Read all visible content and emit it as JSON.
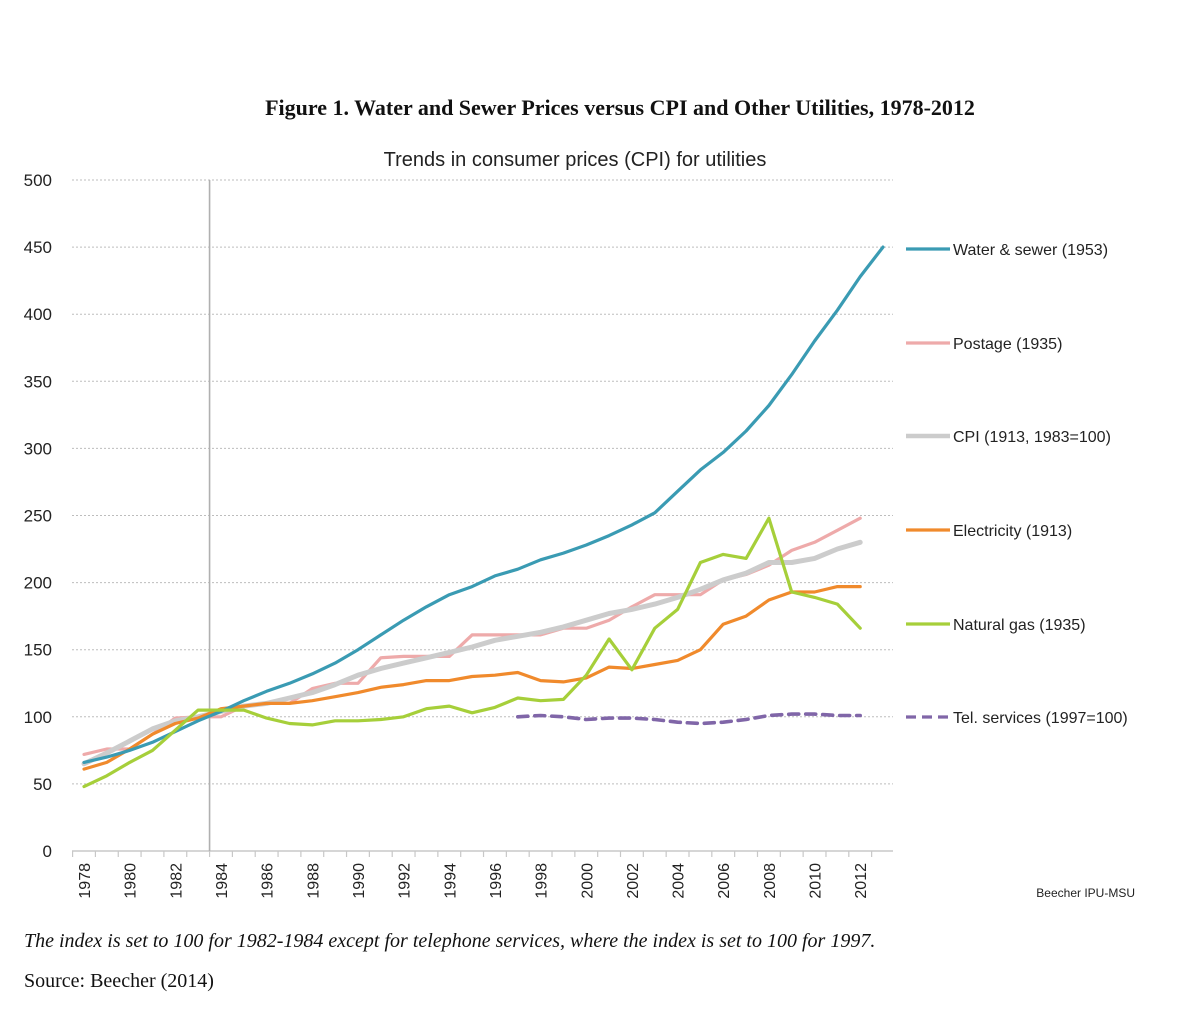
{
  "figure": {
    "title": "Figure 1.  Water and Sewer Prices versus CPI and Other Utilities, 1978-2012",
    "footnote": "The index is set to 100 for 1982-1984 except for telephone services, where the index is set to 100 for 1997.",
    "source": "Source: Beecher (2014)",
    "credit": "Beecher IPU-MSU"
  },
  "chart_data": {
    "type": "line",
    "title": "Trends in consumer prices (CPI) for utilities",
    "xlabel": "",
    "ylabel": "",
    "ylim": [
      0,
      500
    ],
    "yticks": [
      0,
      50,
      100,
      150,
      200,
      250,
      300,
      350,
      400,
      450,
      500
    ],
    "xlim": [
      1978,
      2013
    ],
    "xtick_labels": [
      "1978",
      "1980",
      "1982",
      "1984",
      "1986",
      "1988",
      "1990",
      "1992",
      "1994",
      "1996",
      "1998",
      "2000",
      "2002",
      "2004",
      "2006",
      "2008",
      "2010",
      "2012"
    ],
    "reference_line_x": 1983.5,
    "grid": "horizontal dotted",
    "legend_position": "right",
    "series": [
      {
        "name": "Water & sewer (1953)",
        "color": "#3a9bb3",
        "dashed": false,
        "x": [
          1978,
          1979,
          1980,
          1981,
          1982,
          1983,
          1984,
          1985,
          1986,
          1987,
          1988,
          1989,
          1990,
          1991,
          1992,
          1993,
          1994,
          1995,
          1996,
          1997,
          1998,
          1999,
          2000,
          2001,
          2002,
          2003,
          2004,
          2005,
          2006,
          2007,
          2008,
          2009,
          2010,
          2011,
          2012,
          2013
        ],
        "values": [
          66,
          70,
          75,
          81,
          89,
          97,
          104,
          112,
          119,
          125,
          132,
          140,
          150,
          161,
          172,
          182,
          191,
          197,
          205,
          210,
          217,
          222,
          228,
          235,
          243,
          252,
          268,
          284,
          297,
          313,
          332,
          355,
          380,
          403,
          428,
          450
        ]
      },
      {
        "name": "Postage (1935)",
        "color": "#eeaaaa",
        "dashed": false,
        "x": [
          1978,
          1979,
          1980,
          1981,
          1982,
          1983,
          1984,
          1985,
          1986,
          1987,
          1988,
          1989,
          1990,
          1991,
          1992,
          1993,
          1994,
          1995,
          1996,
          1997,
          1998,
          1999,
          2000,
          2001,
          2002,
          2003,
          2004,
          2005,
          2006,
          2007,
          2008,
          2009,
          2010,
          2011,
          2012
        ],
        "values": [
          72,
          76,
          76,
          87,
          99,
          100,
          100,
          108,
          110,
          110,
          121,
          125,
          125,
          144,
          145,
          145,
          145,
          161,
          161,
          161,
          161,
          166,
          166,
          172,
          182,
          191,
          191,
          191,
          202,
          206,
          213,
          224,
          230,
          239,
          248
        ]
      },
      {
        "name": "CPI (1913, 1983=100)",
        "color": "#cccccc",
        "dashed": false,
        "x": [
          1978,
          1979,
          1980,
          1981,
          1982,
          1983,
          1984,
          1985,
          1986,
          1987,
          1988,
          1989,
          1990,
          1991,
          1992,
          1993,
          1994,
          1995,
          1996,
          1997,
          1998,
          1999,
          2000,
          2001,
          2002,
          2003,
          2004,
          2005,
          2006,
          2007,
          2008,
          2009,
          2010,
          2011,
          2012
        ],
        "values": [
          65,
          73,
          82,
          91,
          97,
          100,
          104,
          108,
          110,
          114,
          118,
          124,
          131,
          136,
          140,
          144,
          148,
          152,
          157,
          160,
          163,
          167,
          172,
          177,
          180,
          184,
          189,
          195,
          202,
          207,
          215,
          215,
          218,
          225,
          230
        ]
      },
      {
        "name": "Electricity (1913)",
        "color": "#f08a2c",
        "dashed": false,
        "x": [
          1978,
          1979,
          1980,
          1981,
          1982,
          1983,
          1984,
          1985,
          1986,
          1987,
          1988,
          1989,
          1990,
          1991,
          1992,
          1993,
          1994,
          1995,
          1996,
          1997,
          1998,
          1999,
          2000,
          2001,
          2002,
          2003,
          2004,
          2005,
          2006,
          2007,
          2008,
          2009,
          2010,
          2011,
          2012
        ],
        "values": [
          61,
          66,
          76,
          87,
          95,
          99,
          106,
          108,
          110,
          110,
          112,
          115,
          118,
          122,
          124,
          127,
          127,
          130,
          131,
          133,
          127,
          126,
          129,
          137,
          136,
          139,
          142,
          150,
          169,
          175,
          187,
          193,
          193,
          197,
          197
        ]
      },
      {
        "name": "Natural gas (1935)",
        "color": "#a6cf3a",
        "dashed": false,
        "x": [
          1978,
          1979,
          1980,
          1981,
          1982,
          1983,
          1984,
          1985,
          1986,
          1987,
          1988,
          1989,
          1990,
          1991,
          1992,
          1993,
          1994,
          1995,
          1996,
          1997,
          1998,
          1999,
          2000,
          2001,
          2002,
          2003,
          2004,
          2005,
          2006,
          2007,
          2008,
          2009,
          2010,
          2011,
          2012
        ],
        "values": [
          48,
          56,
          66,
          75,
          90,
          105,
          105,
          105,
          99,
          95,
          94,
          97,
          97,
          98,
          100,
          106,
          108,
          103,
          107,
          114,
          112,
          113,
          131,
          158,
          135,
          166,
          180,
          215,
          221,
          218,
          248,
          193,
          189,
          184,
          166
        ]
      },
      {
        "name": "Tel. services (1997=100)",
        "color": "#8066a8",
        "dashed": true,
        "x": [
          1997,
          1998,
          1999,
          2000,
          2001,
          2002,
          2003,
          2004,
          2005,
          2006,
          2007,
          2008,
          2009,
          2010,
          2011,
          2012
        ],
        "values": [
          100,
          101,
          100,
          98,
          99,
          99,
          98,
          96,
          95,
          96,
          98,
          101,
          102,
          102,
          101,
          101
        ]
      }
    ]
  }
}
